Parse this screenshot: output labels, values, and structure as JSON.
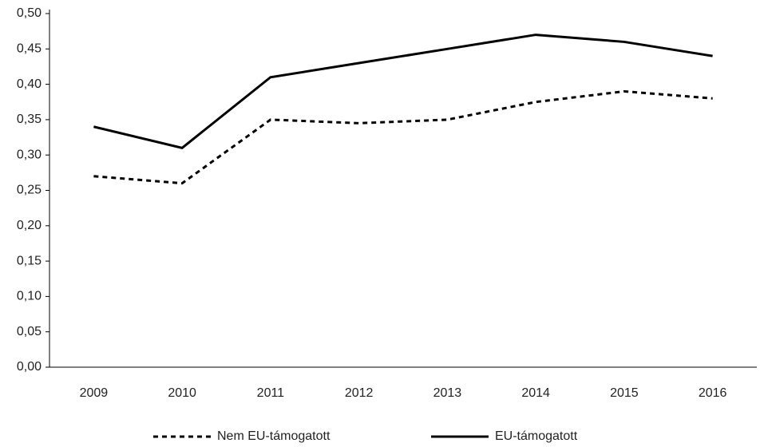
{
  "chart_data": {
    "type": "line",
    "categories": [
      "2009",
      "2010",
      "2011",
      "2012",
      "2013",
      "2014",
      "2015",
      "2016"
    ],
    "series": [
      {
        "name": "Nem EU-támogatott",
        "color": "#000000",
        "dash": "dotted",
        "values": [
          0.27,
          0.26,
          0.35,
          0.345,
          0.35,
          0.375,
          0.39,
          0.38
        ]
      },
      {
        "name": "EU-támogatott",
        "color": "#000000",
        "dash": "solid",
        "values": [
          0.34,
          0.31,
          0.41,
          0.43,
          0.45,
          0.47,
          0.46,
          0.44
        ]
      }
    ],
    "ylim": [
      0,
      0.5
    ],
    "yticks": [
      {
        "value": 0,
        "label": "0,00"
      },
      {
        "value": 0.05,
        "label": "0,05"
      },
      {
        "value": 0.1,
        "label": "0,10"
      },
      {
        "value": 0.15,
        "label": "0,15"
      },
      {
        "value": 0.2,
        "label": "0,20"
      },
      {
        "value": 0.25,
        "label": "0,25"
      },
      {
        "value": 0.3,
        "label": "0,30"
      },
      {
        "value": 0.35,
        "label": "0,35"
      },
      {
        "value": 0.4,
        "label": "0,40"
      },
      {
        "value": 0.45,
        "label": "0,45"
      },
      {
        "value": 0.5,
        "label": "0,50"
      }
    ],
    "grid": false,
    "legend": "bottom"
  }
}
